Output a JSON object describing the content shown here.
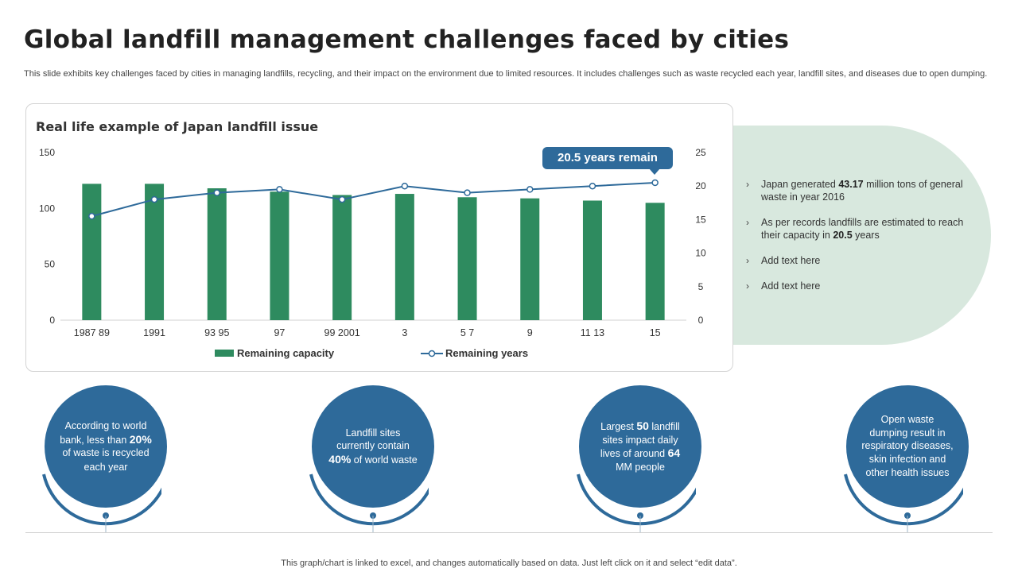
{
  "title": "Global landfill management challenges faced by cities",
  "subtitle": "This slide exhibits key challenges faced by cities in managing landfills, recycling, and their impact on the environment due to limited resources. It includes challenges such as waste recycled each year, landfill sites, and diseases due to open dumping.",
  "chart_title": "Real life example of Japan landfill issue",
  "callout": "20.5 years remain",
  "chart_data": {
    "type": "bar",
    "title": "Real life example of Japan landfill issue",
    "categories": [
      "1987 89",
      "1991",
      "93 95",
      "97",
      "99 2001",
      "3",
      "5 7",
      "9",
      "11 13",
      "15"
    ],
    "series": [
      {
        "name": "Remaining capacity",
        "type": "bar",
        "axis": "left",
        "color": "#2e8b5f",
        "values": [
          122,
          122,
          118,
          115,
          112,
          113,
          110,
          109,
          107,
          105
        ]
      },
      {
        "name": "Remaining years",
        "type": "line",
        "axis": "right",
        "color": "#2e6a9a",
        "values": [
          15.5,
          18,
          19,
          19.5,
          18,
          20,
          19,
          19.5,
          20,
          20.5
        ]
      }
    ],
    "left_axis": {
      "ylim": [
        0,
        150
      ],
      "ticks": [
        0,
        50,
        100,
        150
      ]
    },
    "right_axis": {
      "ylim": [
        0,
        25
      ],
      "ticks": [
        0,
        5,
        10,
        15,
        20,
        25
      ]
    },
    "legend": "bottom"
  },
  "info": [
    {
      "before": "Japan generated ",
      "bold": "43.17",
      "after": " million tons of general waste in year 2016"
    },
    {
      "before": "As per records landfills are estimated to reach their capacity in ",
      "bold": "20.5",
      "after": " years"
    },
    {
      "before": "Add text here",
      "bold": "",
      "after": ""
    },
    {
      "before": "Add text here",
      "bold": "",
      "after": ""
    }
  ],
  "bullet": "›",
  "circles": [
    {
      "p1": "According to world bank, less than ",
      "b1": "20%",
      "p2": " of waste is recycled each year",
      "b2": "",
      "p3": ""
    },
    {
      "p1": "Landfill sites currently contain ",
      "b1": "40%",
      "p2": " of world waste",
      "b2": "",
      "p3": ""
    },
    {
      "p1": "Largest ",
      "b1": "50",
      "p2": " landfill sites impact daily lives of around ",
      "b2": "64",
      "p3": " MM people"
    },
    {
      "p1": "Open waste dumping result in respiratory diseases, skin infection and other health issues",
      "b1": "",
      "p2": "",
      "b2": "",
      "p3": ""
    }
  ],
  "colors": {
    "bar": "#2e8b5f",
    "line": "#2e6a9a",
    "circle": "#2e6a9a",
    "panel": "#d8e8de"
  },
  "footer": "This graph/chart is linked to excel,  and changes automatically based on data. Just left click on it and select “edit data”."
}
